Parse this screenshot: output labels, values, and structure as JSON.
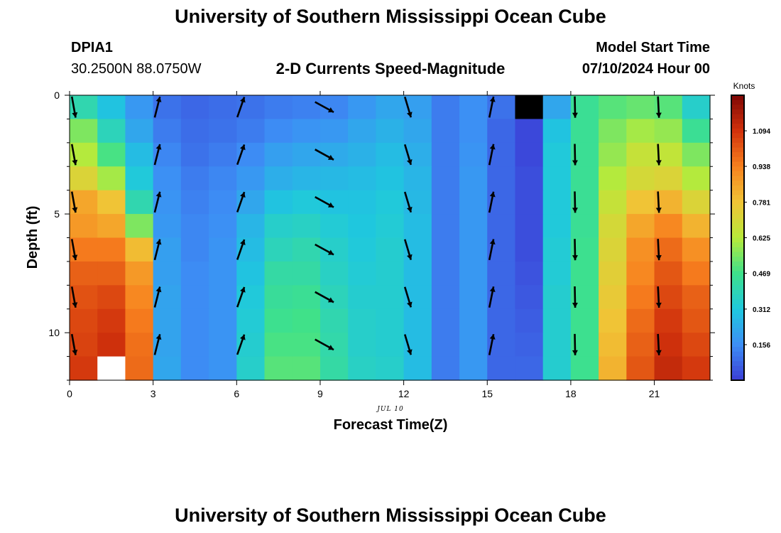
{
  "header": {
    "title": "University of Southern Mississippi Ocean Cube",
    "station": "DPIA1",
    "location": "30.2500N  88.0750W",
    "subtitle": "2-D Currents Speed-Magnitude",
    "model_label": "Model Start Time",
    "model_time": "07/10/2024 Hour 00",
    "footer_title": "University of Southern Mississippi Ocean Cube",
    "date_label": "JUL 10"
  },
  "chart_data": {
    "type": "heatmap",
    "xlabel": "Forecast Time(Z)",
    "ylabel": "Depth (ft)",
    "xlim": [
      0,
      23
    ],
    "ylim": [
      0,
      12
    ],
    "x_ticks": [
      0,
      3,
      6,
      9,
      12,
      15,
      18,
      21
    ],
    "y_ticks": [
      0,
      5,
      10
    ],
    "colorbar": {
      "label": "Knots",
      "ticks": [
        "1.094",
        "0.938",
        "0.781",
        "0.625",
        "0.469",
        "0.312",
        "0.156"
      ],
      "tick_values": [
        1.094,
        0.938,
        0.781,
        0.625,
        0.469,
        0.312,
        0.156
      ],
      "range": [
        0.0,
        1.25
      ]
    },
    "hours": [
      0,
      1,
      2,
      3,
      4,
      5,
      6,
      7,
      8,
      9,
      10,
      11,
      12,
      13,
      14,
      15,
      16,
      17,
      18,
      19,
      20,
      21,
      22
    ],
    "depth_bins": [
      0,
      1,
      2,
      3,
      4,
      5,
      6,
      7,
      8,
      9,
      10,
      11
    ],
    "speed_knots": [
      [
        0.4,
        0.3,
        0.18,
        0.1,
        0.08,
        0.09,
        0.1,
        0.12,
        0.13,
        0.14,
        0.18,
        0.22,
        0.2,
        0.12,
        0.16,
        0.1,
        null,
        0.22,
        0.45,
        0.5,
        0.52,
        0.5,
        0.35
      ],
      [
        0.55,
        0.38,
        0.22,
        0.12,
        0.09,
        0.1,
        0.12,
        0.15,
        0.17,
        0.18,
        0.22,
        0.25,
        0.22,
        0.12,
        0.16,
        0.08,
        0.02,
        0.3,
        0.45,
        0.55,
        0.6,
        0.58,
        0.45
      ],
      [
        0.62,
        0.48,
        0.28,
        0.14,
        0.1,
        0.12,
        0.15,
        0.2,
        0.22,
        0.23,
        0.25,
        0.28,
        0.24,
        0.12,
        0.17,
        0.08,
        0.02,
        0.32,
        0.45,
        0.58,
        0.66,
        0.65,
        0.55
      ],
      [
        0.72,
        0.6,
        0.32,
        0.16,
        0.12,
        0.14,
        0.18,
        0.24,
        0.26,
        0.27,
        0.28,
        0.3,
        0.26,
        0.12,
        0.18,
        0.08,
        0.03,
        0.32,
        0.45,
        0.62,
        0.7,
        0.72,
        0.62
      ],
      [
        0.85,
        0.78,
        0.4,
        0.17,
        0.13,
        0.15,
        0.22,
        0.3,
        0.32,
        0.3,
        0.3,
        0.32,
        0.27,
        0.12,
        0.18,
        0.08,
        0.03,
        0.32,
        0.45,
        0.66,
        0.78,
        0.82,
        0.72
      ],
      [
        0.88,
        0.85,
        0.55,
        0.18,
        0.14,
        0.16,
        0.26,
        0.35,
        0.36,
        0.33,
        0.31,
        0.33,
        0.28,
        0.12,
        0.18,
        0.08,
        0.03,
        0.32,
        0.45,
        0.7,
        0.85,
        0.92,
        0.82
      ],
      [
        0.95,
        0.95,
        0.8,
        0.2,
        0.14,
        0.17,
        0.28,
        0.38,
        0.4,
        0.35,
        0.32,
        0.34,
        0.28,
        0.12,
        0.18,
        0.08,
        0.03,
        0.33,
        0.46,
        0.72,
        0.9,
        0.98,
        0.9
      ],
      [
        1.0,
        1.0,
        0.88,
        0.2,
        0.15,
        0.17,
        0.3,
        0.42,
        0.42,
        0.36,
        0.33,
        0.34,
        0.28,
        0.12,
        0.18,
        0.08,
        0.04,
        0.33,
        0.46,
        0.74,
        0.92,
        1.02,
        0.95
      ],
      [
        1.03,
        1.05,
        0.92,
        0.21,
        0.15,
        0.17,
        0.32,
        0.44,
        0.45,
        0.38,
        0.34,
        0.34,
        0.28,
        0.12,
        0.18,
        0.08,
        0.05,
        0.34,
        0.46,
        0.76,
        0.95,
        1.05,
        1.0
      ],
      [
        1.05,
        1.08,
        0.95,
        0.21,
        0.15,
        0.17,
        0.33,
        0.46,
        0.47,
        0.4,
        0.35,
        0.34,
        0.28,
        0.12,
        0.18,
        0.08,
        0.06,
        0.34,
        0.46,
        0.78,
        0.98,
        1.08,
        1.02
      ],
      [
        1.06,
        1.1,
        0.97,
        0.21,
        0.15,
        0.17,
        0.34,
        0.48,
        0.48,
        0.41,
        0.35,
        0.34,
        0.28,
        0.12,
        0.18,
        0.08,
        0.07,
        0.34,
        0.46,
        0.8,
        1.0,
        1.1,
        1.05
      ],
      [
        1.08,
        null,
        0.98,
        0.22,
        0.15,
        0.17,
        0.35,
        0.5,
        0.5,
        0.42,
        0.36,
        0.35,
        0.28,
        0.12,
        0.18,
        0.08,
        0.08,
        0.34,
        0.46,
        0.82,
        1.02,
        1.12,
        1.08
      ]
    ],
    "vectors": [
      {
        "hour": 0,
        "dx": 0.18,
        "dy": 1
      },
      {
        "hour": 3,
        "dx": 0.25,
        "dy": -1
      },
      {
        "hour": 6,
        "dx": 0.35,
        "dy": -1
      },
      {
        "hour": 9,
        "dx": 1,
        "dy": 0.55
      },
      {
        "hour": 12,
        "dx": 0.3,
        "dy": 1
      },
      {
        "hour": 15,
        "dx": 0.2,
        "dy": -1
      },
      {
        "hour": 18,
        "dx": 0.02,
        "dy": 1
      },
      {
        "hour": 21,
        "dx": 0.05,
        "dy": 1
      }
    ],
    "vector_depths": [
      0.5,
      2.5,
      4.5,
      6.5,
      8.5,
      10.5
    ],
    "colormap": [
      "#3b3ed6",
      "#3d8ff5",
      "#1fc8de",
      "#3fe18a",
      "#b8ea3a",
      "#f0c436",
      "#f8801e",
      "#d1320c",
      "#7e0604"
    ]
  }
}
